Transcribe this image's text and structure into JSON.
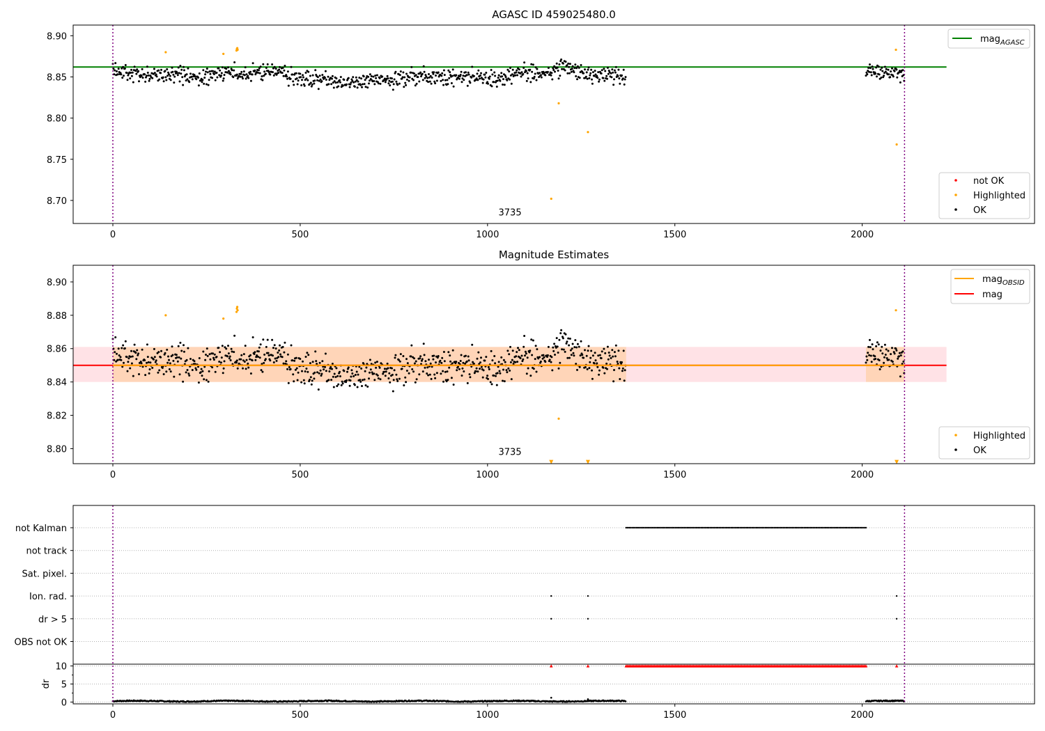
{
  "chart_data": [
    {
      "type": "scatter",
      "title": "AGASC ID 459025480.0",
      "xlim": [
        -106,
        2460
      ],
      "ylim": [
        8.672,
        8.913
      ],
      "xticks": [
        0,
        500,
        1000,
        1500,
        2000
      ],
      "yticks": [
        8.7,
        8.75,
        8.8,
        8.85,
        8.9
      ],
      "ytick_labels": [
        "8.70",
        "8.75",
        "8.80",
        "8.85",
        "8.90"
      ],
      "grid": false,
      "obsid_bounds": [
        0,
        2113
      ],
      "obsid_annotation": {
        "text": "3735",
        "x": 1060,
        "y": 8.675
      },
      "hlines": [
        {
          "name": "mag_AGASC",
          "y": 8.862,
          "xmin": -106,
          "xmax": 2225,
          "color": "#008000"
        }
      ],
      "segments": [
        {
          "x0": 0,
          "x1": 1370
        },
        {
          "x0": 2010,
          "x1": 2113
        }
      ],
      "series_ok": {
        "name": "OK",
        "color": "#000000",
        "base": 8.85,
        "center_ref": 8.85,
        "spread": 0.0125,
        "step": 1.7
      },
      "series_highlighted": {
        "name": "Highlighted",
        "color": "#ffa500",
        "x": [
          141,
          295,
          330,
          331,
          332,
          333,
          1190,
          1170,
          1268,
          2090,
          2092
        ],
        "y": [
          8.88,
          8.878,
          8.882,
          8.884,
          8.885,
          8.883,
          8.818,
          8.702,
          8.783,
          8.883,
          8.768
        ]
      },
      "series_not_ok": {
        "name": "not OK",
        "color": "#ff0000",
        "x": [],
        "y": []
      },
      "legend_upper": {
        "position": "upper-right",
        "entries": [
          {
            "label": "mag",
            "sub": "AGASC",
            "color": "#008000",
            "kind": "line"
          }
        ]
      },
      "legend_lower": {
        "position": "lower-right",
        "entries": [
          {
            "label": "not OK",
            "color": "#ff0000",
            "kind": "dot"
          },
          {
            "label": "Highlighted",
            "color": "#ffa500",
            "kind": "dot"
          },
          {
            "label": "OK",
            "color": "#000000",
            "kind": "dot"
          }
        ]
      }
    },
    {
      "type": "scatter",
      "title": "Magnitude Estimates",
      "xlim": [
        -106,
        2460
      ],
      "ylim": [
        8.791,
        8.91
      ],
      "xticks": [
        0,
        500,
        1000,
        1500,
        2000
      ],
      "yticks": [
        8.8,
        8.82,
        8.84,
        8.86,
        8.88,
        8.9
      ],
      "ytick_labels": [
        "8.80",
        "8.82",
        "8.84",
        "8.86",
        "8.88",
        "8.90"
      ],
      "grid": false,
      "obsid_bounds": [
        0,
        2113
      ],
      "obsid_annotation": {
        "text": "3735",
        "x": 1060,
        "y": 8.795
      },
      "bands": [
        {
          "name": "mag band",
          "y0": 8.84,
          "y1": 8.861,
          "xmin": -106,
          "xmax": 2225,
          "color": "#ffb6c1",
          "opacity": 0.4
        },
        {
          "name": "mag_OBSID band",
          "y0": 8.84,
          "y1": 8.861,
          "xmin": 0,
          "xmax": 1370,
          "color": "#ffa500",
          "opacity": 0.2
        },
        {
          "name": "mag_OBSID band 2",
          "y0": 8.84,
          "y1": 8.861,
          "xmin": 2010,
          "xmax": 2113,
          "color": "#ffa500",
          "opacity": 0.2
        }
      ],
      "hlines": [
        {
          "name": "mag",
          "y": 8.85,
          "xmin": -106,
          "xmax": 2225,
          "color": "#ff0000"
        },
        {
          "name": "mag_OBSID",
          "y": 8.85,
          "xmin": 0,
          "xmax": 2113,
          "color": "#ffa500"
        }
      ],
      "segments": [
        {
          "x0": 0,
          "x1": 1370
        },
        {
          "x0": 2010,
          "x1": 2113
        }
      ],
      "series_ok": {
        "name": "OK",
        "color": "#000000",
        "base": 8.85,
        "center_ref": 8.85,
        "spread": 0.0125,
        "step": 1.7
      },
      "series_highlighted": {
        "name": "Highlighted",
        "color": "#ffa500",
        "x": [
          141,
          295,
          330,
          331,
          332,
          333,
          1190,
          2090
        ],
        "y": [
          8.88,
          8.878,
          8.882,
          8.884,
          8.885,
          8.883,
          8.818,
          8.883
        ]
      },
      "offscale_markers": {
        "name": "Highlighted (below range)",
        "color": "#ffa500",
        "x": [
          1170,
          1268,
          2092
        ],
        "y": 8.792
      },
      "legend_upper": {
        "position": "upper-right",
        "entries": [
          {
            "label": "mag",
            "sub": "OBSID",
            "color": "#ffa500",
            "kind": "line"
          },
          {
            "label": "mag",
            "sub": "",
            "color": "#ff0000",
            "kind": "line"
          }
        ]
      },
      "legend_lower": {
        "position": "lower-right",
        "entries": [
          {
            "label": "Highlighted",
            "color": "#ffa500",
            "kind": "dot"
          },
          {
            "label": "OK",
            "color": "#000000",
            "kind": "dot"
          }
        ]
      }
    },
    {
      "type": "scatter",
      "title": "",
      "xlim": [
        -106,
        2460
      ],
      "xticks": [
        0,
        500,
        1000,
        1500,
        2000
      ],
      "grid": true,
      "obsid_bounds": [
        0,
        2113
      ],
      "flags": {
        "categories": [
          "not Kalman",
          "not track",
          "Sat. pixel.",
          "Ion. rad.",
          "dr > 5",
          "OBS not OK"
        ],
        "points": [
          {
            "flag": "not Kalman",
            "x_range": [
              1370,
              2010
            ],
            "step": 4
          },
          {
            "flag": "Ion. rad.",
            "x": [
              1170,
              1268,
              2092
            ]
          },
          {
            "flag": "dr > 5",
            "x": [
              1170,
              1268,
              2092
            ]
          }
        ]
      },
      "dr": {
        "ylabel": "dr",
        "ylim": [
          -0.5,
          10.5
        ],
        "yticks": [
          0,
          5,
          10
        ],
        "ytick_labels": [
          "0",
          "5",
          "10"
        ],
        "segments": [
          {
            "x0": 0,
            "x1": 1370
          },
          {
            "x0": 2010,
            "x1": 2113
          }
        ],
        "base": 0.25,
        "capped": {
          "color": "#ff0000",
          "x": [
            1170,
            1268,
            2092
          ],
          "x_range": [
            1370,
            2010
          ],
          "step": 4,
          "y": 10
        },
        "spikes": {
          "x": [
            1170,
            1268
          ],
          "y": [
            1.2,
            0.8
          ]
        }
      }
    }
  ]
}
